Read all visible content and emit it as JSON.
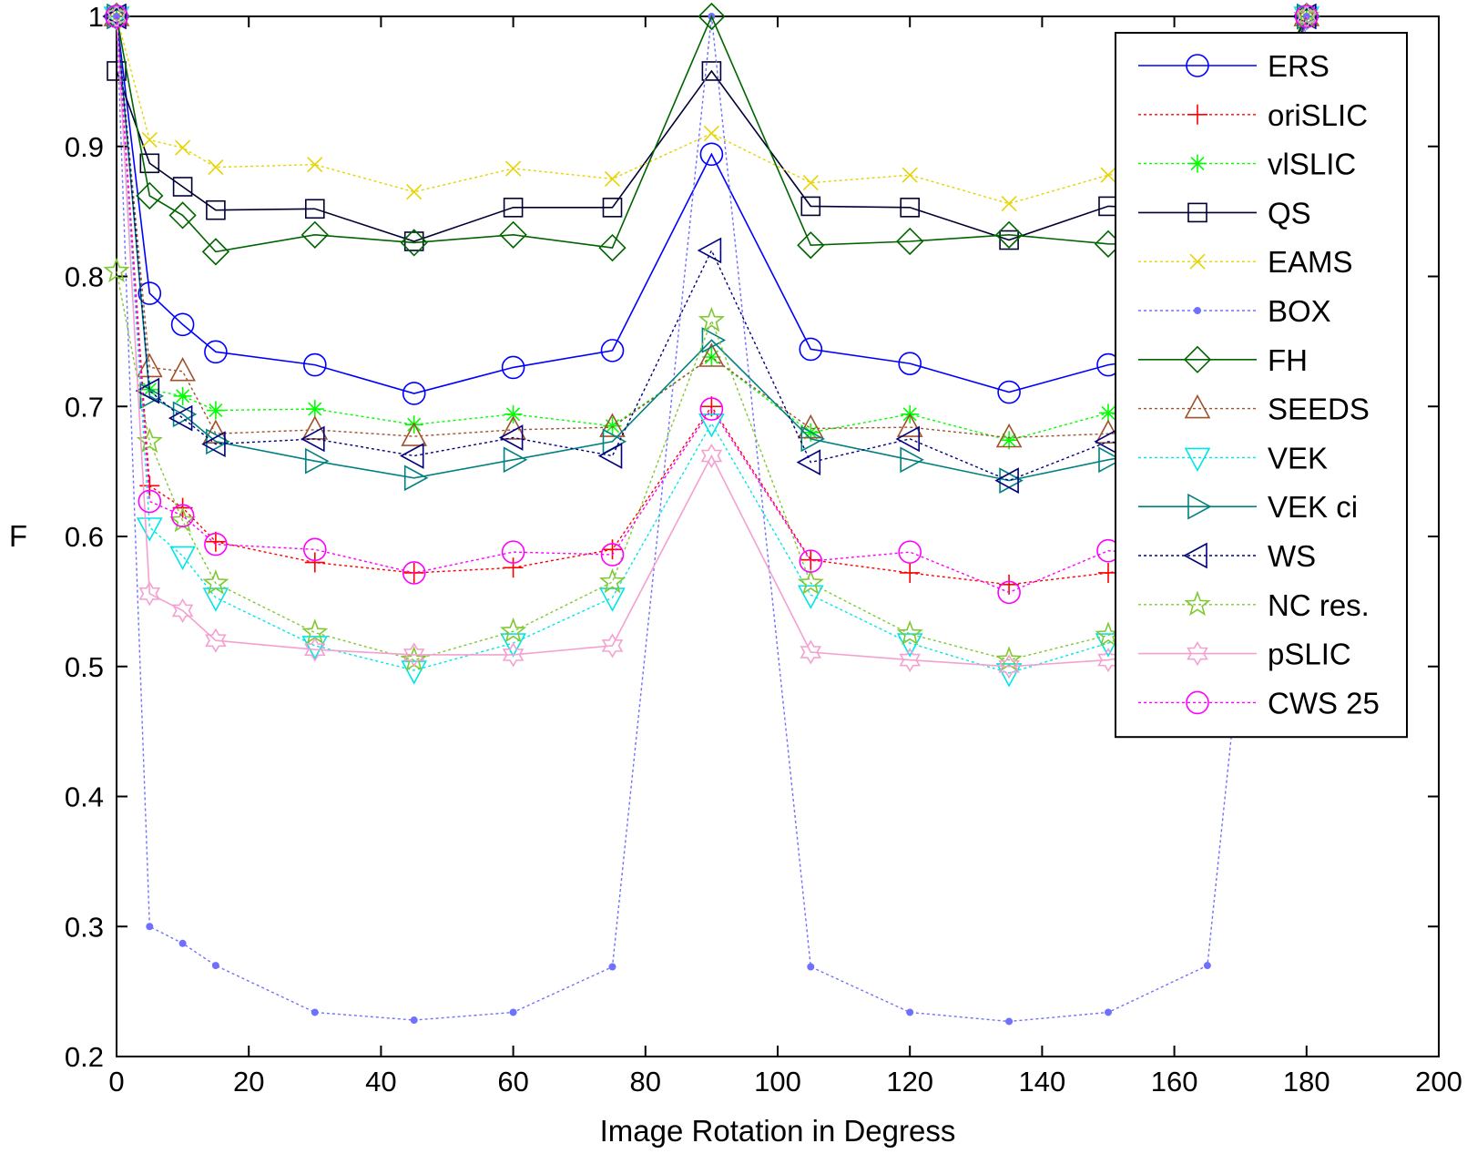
{
  "chart_data": {
    "type": "line",
    "title": "",
    "xlabel": "Image Rotation in Degress",
    "ylabel": "F",
    "xlim": [
      0,
      200
    ],
    "ylim": [
      0.2,
      1
    ],
    "xticks": [
      0,
      20,
      40,
      60,
      80,
      100,
      120,
      140,
      160,
      180,
      200
    ],
    "xtick_labels": [
      "0",
      "20",
      "40",
      "60",
      "80",
      "100",
      "120",
      "140",
      "160",
      "180",
      "200"
    ],
    "yticks": [
      0.2,
      0.3,
      0.4,
      0.5,
      0.6,
      0.7,
      0.8,
      0.9,
      1
    ],
    "ytick_labels": [
      "0.2",
      "0.3",
      "0.4",
      "0.5",
      "0.6",
      "0.7",
      "0.8",
      "0.9",
      "1"
    ],
    "grid": false,
    "legend": "top-right",
    "x": [
      0,
      5,
      10,
      15,
      30,
      45,
      60,
      75,
      90,
      105,
      120,
      135,
      150,
      165,
      180
    ],
    "series": [
      {
        "name": "ERS",
        "color": "#0000ff",
        "dash": "solid",
        "marker": "circle",
        "values": [
          1.0,
          0.787,
          0.763,
          0.742,
          0.732,
          0.71,
          0.73,
          0.743,
          0.894,
          0.744,
          0.733,
          0.711,
          0.732,
          0.743,
          1.0
        ]
      },
      {
        "name": "oriSLIC",
        "color": "#ff0000",
        "dash": "dotted",
        "marker": "plus",
        "values": [
          1.0,
          0.639,
          0.622,
          0.596,
          0.58,
          0.572,
          0.576,
          0.59,
          0.7,
          0.582,
          0.572,
          0.563,
          0.572,
          0.587,
          1.0
        ]
      },
      {
        "name": "vlSLIC",
        "color": "#00ff00",
        "dash": "dotted",
        "marker": "asterisk",
        "values": [
          1.0,
          0.713,
          0.708,
          0.697,
          0.698,
          0.686,
          0.694,
          0.685,
          0.738,
          0.68,
          0.694,
          0.674,
          0.695,
          0.683,
          1.0
        ]
      },
      {
        "name": "QS",
        "color": "#000033",
        "dash": "solid",
        "marker": "square",
        "values": [
          0.958,
          0.887,
          0.869,
          0.851,
          0.852,
          0.827,
          0.853,
          0.853,
          0.958,
          0.854,
          0.853,
          0.828,
          0.854,
          0.851,
          1.0
        ]
      },
      {
        "name": "EAMS",
        "color": "#e6d400",
        "dash": "dotted",
        "marker": "x",
        "values": [
          1.0,
          0.905,
          0.899,
          0.884,
          0.886,
          0.865,
          0.883,
          0.875,
          0.91,
          0.872,
          0.878,
          0.856,
          0.878,
          0.884,
          1.0
        ]
      },
      {
        "name": "BOX",
        "color": "#7070ff",
        "dash": "dotted",
        "marker": "dot",
        "values": [
          1.0,
          0.3,
          0.287,
          0.27,
          0.234,
          0.228,
          0.234,
          0.269,
          1.0,
          0.269,
          0.234,
          0.227,
          0.234,
          0.27,
          1.0
        ]
      },
      {
        "name": "FH",
        "color": "#006400",
        "dash": "solid",
        "marker": "diamond",
        "values": [
          1.0,
          0.862,
          0.847,
          0.819,
          0.832,
          0.826,
          0.832,
          0.822,
          1.0,
          0.824,
          0.827,
          0.832,
          0.825,
          0.824,
          1.0
        ]
      },
      {
        "name": "SEEDS",
        "color": "#a0522d",
        "dash": "dotted",
        "marker": "triangle-up",
        "values": [
          1.0,
          0.73,
          0.727,
          0.679,
          0.682,
          0.677,
          0.682,
          0.684,
          0.738,
          0.683,
          0.684,
          0.676,
          0.679,
          0.681,
          1.0
        ]
      },
      {
        "name": "VEK",
        "color": "#00e6e6",
        "dash": "dotted",
        "marker": "triangle-down",
        "values": [
          1.0,
          0.607,
          0.585,
          0.553,
          0.516,
          0.497,
          0.518,
          0.553,
          0.687,
          0.555,
          0.518,
          0.495,
          0.518,
          0.55,
          1.0
        ]
      },
      {
        "name": "VEK ci",
        "color": "#008080",
        "dash": "solid",
        "marker": "triangle-right",
        "values": [
          1.0,
          0.708,
          0.694,
          0.673,
          0.658,
          0.645,
          0.659,
          0.673,
          0.751,
          0.675,
          0.659,
          0.643,
          0.659,
          0.672,
          1.0
        ]
      },
      {
        "name": "WS",
        "color": "#000080",
        "dash": "dotted",
        "marker": "triangle-left",
        "values": [
          1.0,
          0.712,
          0.691,
          0.671,
          0.675,
          0.662,
          0.676,
          0.662,
          0.82,
          0.657,
          0.675,
          0.643,
          0.673,
          0.664,
          1.0
        ]
      },
      {
        "name": "NC res.",
        "color": "#7fc832",
        "dash": "dotted",
        "marker": "star",
        "values": [
          0.804,
          0.673,
          0.612,
          0.564,
          0.526,
          0.505,
          0.527,
          0.565,
          0.766,
          0.564,
          0.525,
          0.505,
          0.524,
          0.56,
          1.0
        ]
      },
      {
        "name": "pSLIC",
        "color": "#f4a0d0",
        "dash": "solid",
        "marker": "hexagram",
        "values": [
          1.0,
          0.556,
          0.543,
          0.52,
          0.513,
          0.509,
          0.509,
          0.516,
          0.662,
          0.511,
          0.505,
          0.5,
          0.505,
          0.52,
          1.0
        ]
      },
      {
        "name": "CWS 25",
        "color": "#ff00ff",
        "dash": "dotted",
        "marker": "circle",
        "values": [
          1.0,
          0.627,
          0.616,
          0.594,
          0.59,
          0.572,
          0.588,
          0.586,
          0.698,
          0.581,
          0.588,
          0.557,
          0.589,
          0.585,
          1.0
        ]
      }
    ]
  }
}
